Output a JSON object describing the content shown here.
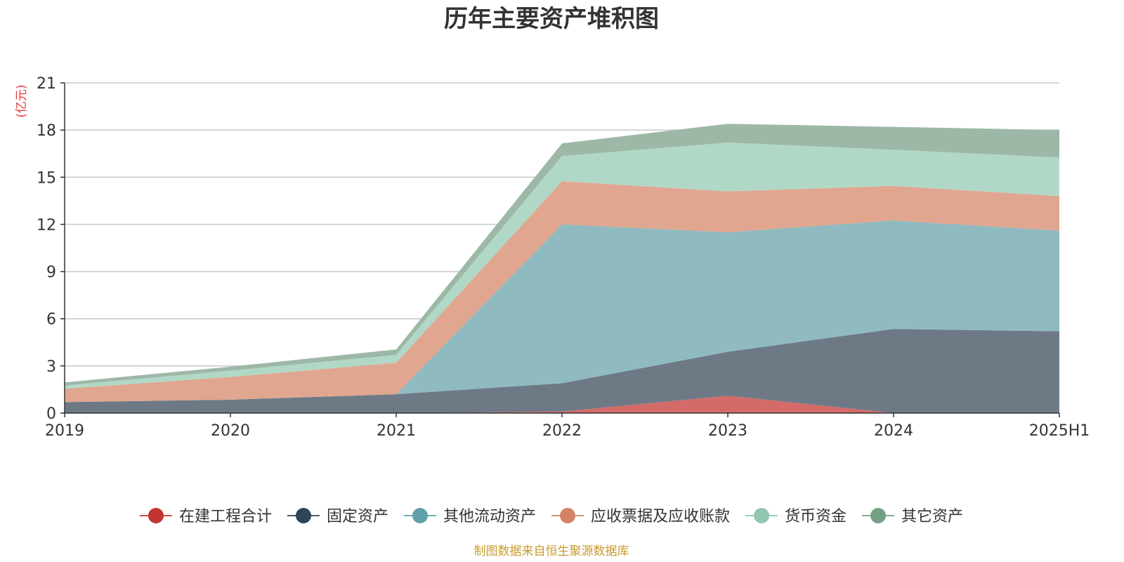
{
  "chart_data": {
    "type": "area",
    "stacked": true,
    "title": "历年主要资产堆积图",
    "unit": "(亿元)",
    "source": "制图数据来自恒生聚源数据库",
    "x": [
      "2019",
      "2020",
      "2021",
      "2022",
      "2023",
      "2024",
      "2025H1"
    ],
    "ylim": [
      0,
      21
    ],
    "yticks": [
      0,
      3,
      6,
      9,
      12,
      15,
      18,
      21
    ],
    "grid": true,
    "legend_position": "bottom",
    "series": [
      {
        "name": "在建工程合计",
        "color": "#c23531",
        "fill": "#d46b69",
        "values": [
          0.0,
          0.0,
          0.0,
          0.1,
          1.1,
          0.0,
          0.0
        ]
      },
      {
        "name": "固定资产",
        "color": "#2f4554",
        "fill": "#6d7a86",
        "values": [
          0.7,
          0.85,
          1.2,
          1.8,
          2.8,
          5.35,
          5.2
        ]
      },
      {
        "name": "其他流动资产",
        "color": "#61a0a8",
        "fill": "#8fbac0",
        "values": [
          0.0,
          0.0,
          0.0,
          10.1,
          7.6,
          6.9,
          6.4
        ]
      },
      {
        "name": "应收票据及应收账款",
        "color": "#d48265",
        "fill": "#e0a690",
        "values": [
          0.85,
          1.45,
          2.0,
          2.75,
          2.6,
          2.2,
          2.2
        ]
      },
      {
        "name": "货币资金",
        "color": "#91c7ae",
        "fill": "#b1d8c6",
        "values": [
          0.2,
          0.4,
          0.5,
          1.6,
          3.1,
          2.3,
          2.45
        ]
      },
      {
        "name": "其它资产",
        "color": "#749f83",
        "fill": "#9db8a7",
        "values": [
          0.2,
          0.25,
          0.35,
          0.8,
          1.2,
          1.45,
          1.75
        ]
      }
    ]
  }
}
